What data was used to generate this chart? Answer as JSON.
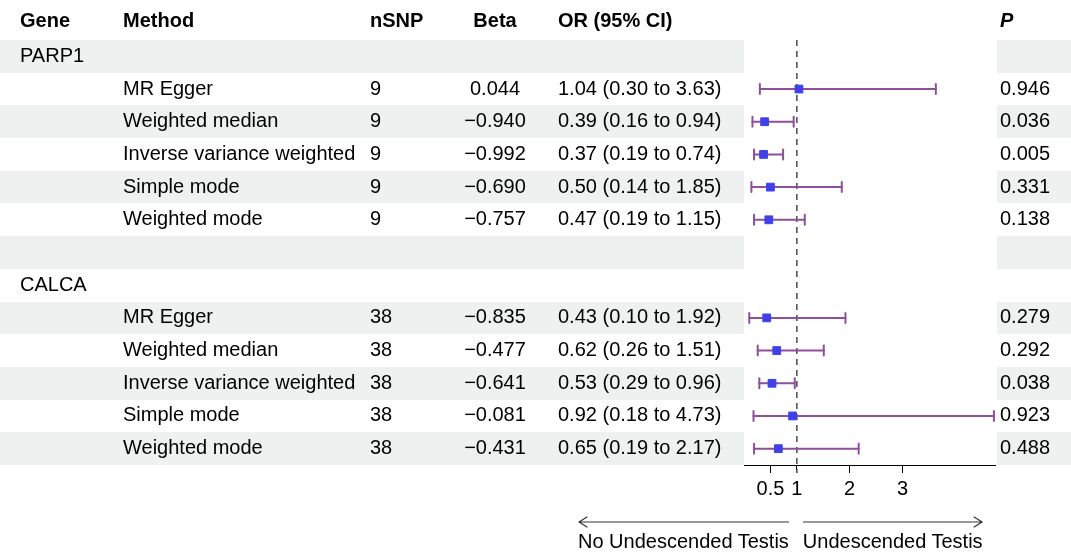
{
  "chart_data": {
    "type": "scatter",
    "orientation": "horizontal",
    "marker": "square",
    "grid": false,
    "legend": false,
    "categories": [
      null,
      null,
      null,
      null,
      null,
      null,
      null,
      null,
      null,
      null,
      null,
      null,
      null
    ],
    "xlim": [
      0,
      4.75
    ],
    "xticks": [
      0.5,
      1,
      2,
      3
    ],
    "ref_lines": [
      {
        "axis": "x",
        "value": 1,
        "line_style": "dashed"
      }
    ],
    "annotations": [
      "No Undescended Testis",
      "Undescended Testis"
    ],
    "series": [
      {
        "name": "OR (95% CI)",
        "color": "#4040e8",
        "values": [
          null,
          1.04,
          0.39,
          0.37,
          0.5,
          0.47,
          null,
          null,
          0.43,
          0.62,
          0.53,
          0.92,
          0.65
        ],
        "errors": [
          null,
          [
            0.3,
            3.63
          ],
          [
            0.16,
            0.94
          ],
          [
            0.19,
            0.74
          ],
          [
            0.14,
            1.85
          ],
          [
            0.19,
            1.15
          ],
          null,
          null,
          [
            0.1,
            1.92
          ],
          [
            0.26,
            1.51
          ],
          [
            0.29,
            0.96
          ],
          [
            0.18,
            4.73
          ],
          [
            0.19,
            2.17
          ]
        ],
        "value_labels": [
          null,
          "1.04 (0.30 to 3.63)",
          "0.39 (0.16 to 0.94)",
          "0.37 (0.19 to 0.74)",
          "0.50 (0.14 to 1.85)",
          "0.47 (0.19 to 1.15)",
          null,
          null,
          "0.43 (0.10 to 1.92)",
          "0.62 (0.26 to 1.51)",
          "0.53 (0.29 to 0.96)",
          "0.92 (0.18 to 4.73)",
          "0.65 (0.19 to 2.17)"
        ]
      },
      {
        "name": "Gene",
        "type": "other",
        "values": [
          null,
          null,
          null,
          null,
          null,
          null,
          null,
          null,
          null,
          null,
          null,
          null,
          null
        ],
        "value_labels": [
          "PARP1",
          null,
          null,
          null,
          null,
          null,
          null,
          "CALCA",
          null,
          null,
          null,
          null,
          null
        ]
      },
      {
        "name": "Method",
        "type": "other",
        "values": [
          null,
          null,
          null,
          null,
          null,
          null,
          null,
          null,
          null,
          null,
          null,
          null,
          null
        ],
        "value_labels": [
          null,
          "MR Egger",
          "Weighted median",
          "Inverse variance weighted",
          "Simple mode",
          "Weighted mode",
          null,
          null,
          "MR Egger",
          "Weighted median",
          "Inverse variance weighted",
          "Simple mode",
          "Weighted mode"
        ]
      },
      {
        "name": "nSNP",
        "type": "other",
        "values": [
          null,
          null,
          null,
          null,
          null,
          null,
          null,
          null,
          null,
          null,
          null,
          null,
          null
        ],
        "value_labels": [
          null,
          "9",
          "9",
          "9",
          "9",
          "9",
          null,
          null,
          "38",
          "38",
          "38",
          "38",
          "38"
        ]
      },
      {
        "name": "Beta",
        "type": "other",
        "values": [
          null,
          null,
          null,
          null,
          null,
          null,
          null,
          null,
          null,
          null,
          null,
          null,
          null
        ],
        "value_labels": [
          null,
          "0.044",
          "−0.940",
          "−0.992",
          "−0.690",
          "−0.757",
          null,
          null,
          "−0.835",
          "−0.477",
          "−0.641",
          "−0.081",
          "−0.431"
        ]
      },
      {
        "name": "P",
        "type": "other",
        "values": [
          null,
          null,
          null,
          null,
          null,
          null,
          null,
          null,
          null,
          null,
          null,
          null,
          null
        ],
        "value_labels": [
          null,
          "0.946",
          "0.036",
          "0.005",
          "0.331",
          "0.138",
          null,
          null,
          "0.279",
          "0.292",
          "0.038",
          "0.923",
          "0.488"
        ]
      }
    ]
  }
}
